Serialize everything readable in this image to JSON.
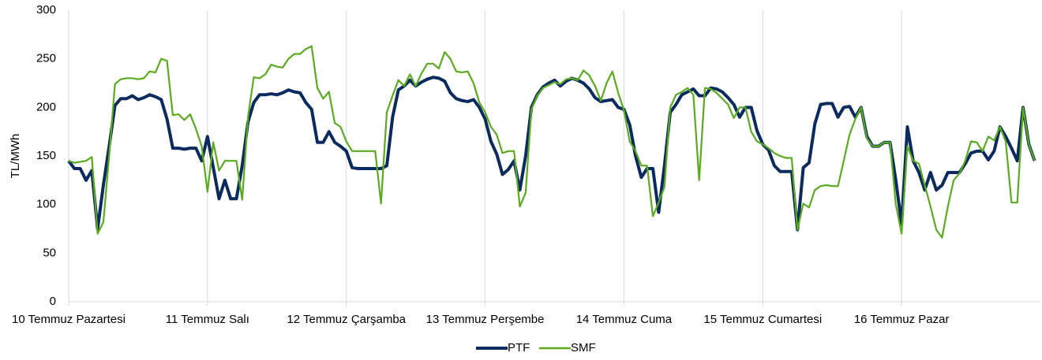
{
  "chart_data": {
    "type": "line",
    "y_label": "TL/MWh",
    "categories": [
      "10 Temmuz Pazartesi",
      null,
      null,
      null,
      null,
      null,
      null,
      null,
      null,
      null,
      null,
      null,
      null,
      null,
      null,
      null,
      null,
      null,
      null,
      null,
      null,
      null,
      null,
      null,
      "11 Temmuz Salı",
      null,
      null,
      null,
      null,
      null,
      null,
      null,
      null,
      null,
      null,
      null,
      null,
      null,
      null,
      null,
      null,
      null,
      null,
      null,
      null,
      null,
      null,
      null,
      "12 Temmuz Çarşamba",
      null,
      null,
      null,
      null,
      null,
      null,
      null,
      null,
      null,
      null,
      null,
      null,
      null,
      null,
      null,
      null,
      null,
      null,
      null,
      null,
      null,
      null,
      null,
      "13 Temmuz Perşembe",
      null,
      null,
      null,
      null,
      null,
      null,
      null,
      null,
      null,
      null,
      null,
      null,
      null,
      null,
      null,
      null,
      null,
      null,
      null,
      null,
      null,
      null,
      null,
      "14 Temmuz Cuma",
      null,
      null,
      null,
      null,
      null,
      null,
      null,
      null,
      null,
      null,
      null,
      null,
      null,
      null,
      null,
      null,
      null,
      null,
      null,
      null,
      null,
      null,
      null,
      "15 Temmuz Cumartesi",
      null,
      null,
      null,
      null,
      null,
      null,
      null,
      null,
      null,
      null,
      null,
      null,
      null,
      null,
      null,
      null,
      null,
      null,
      null,
      null,
      null,
      null,
      null,
      "16 Temmuz Pazar",
      null,
      null,
      null,
      null,
      null,
      null,
      null,
      null,
      null,
      null,
      null,
      null,
      null,
      null,
      null,
      null,
      null,
      null,
      null,
      null,
      null,
      null,
      null
    ],
    "series": [
      {
        "name": "PTF",
        "color": "#0b2a5e",
        "values": [
          145,
          137,
          137,
          125,
          135,
          75,
          120,
          160,
          202,
          209,
          209,
          212,
          208,
          210,
          213,
          211,
          208,
          188,
          158,
          158,
          157,
          158,
          158,
          145,
          170,
          138,
          106,
          125,
          106,
          106,
          140,
          185,
          205,
          213,
          213,
          214,
          213,
          215,
          218,
          216,
          215,
          205,
          198,
          164,
          164,
          175,
          164,
          160,
          155,
          138,
          137,
          137,
          137,
          137,
          137,
          140,
          190,
          218,
          222,
          228,
          222,
          226,
          229,
          231,
          230,
          227,
          215,
          209,
          207,
          206,
          208,
          200,
          188,
          165,
          152,
          131,
          136,
          145,
          115,
          150,
          200,
          213,
          221,
          225,
          228,
          222,
          227,
          230,
          228,
          225,
          219,
          210,
          206,
          207,
          208,
          200,
          198,
          182,
          150,
          128,
          137,
          137,
          92,
          140,
          195,
          203,
          213,
          216,
          219,
          212,
          212,
          220,
          219,
          216,
          210,
          203,
          190,
          200,
          200,
          176,
          162,
          156,
          140,
          134,
          134,
          134,
          74,
          138,
          143,
          183,
          203,
          204,
          204,
          190,
          200,
          201,
          190,
          200,
          170,
          160,
          160,
          164,
          164,
          125,
          80,
          180,
          145,
          133,
          115,
          133,
          115,
          120,
          133,
          133,
          133,
          142,
          153,
          155,
          155,
          146,
          155,
          180,
          170,
          158,
          145,
          200,
          162,
          145
        ]
      },
      {
        "name": "SMF",
        "color": "#5aab1e",
        "values": [
          145,
          143,
          144,
          145,
          149,
          70,
          82,
          150,
          224,
          229,
          230,
          230,
          229,
          230,
          237,
          236,
          250,
          248,
          192,
          193,
          187,
          193,
          178,
          160,
          113,
          164,
          135,
          145,
          145,
          145,
          105,
          190,
          231,
          230,
          234,
          244,
          242,
          241,
          250,
          255,
          255,
          260,
          263,
          220,
          209,
          216,
          184,
          180,
          165,
          155,
          155,
          155,
          155,
          155,
          101,
          195,
          212,
          228,
          222,
          234,
          222,
          235,
          245,
          245,
          240,
          257,
          250,
          237,
          236,
          237,
          225,
          205,
          195,
          180,
          172,
          153,
          155,
          155,
          98,
          112,
          198,
          212,
          220,
          223,
          226,
          224,
          229,
          230,
          228,
          238,
          233,
          222,
          207,
          225,
          237,
          215,
          197,
          165,
          155,
          140,
          140,
          88,
          102,
          118,
          200,
          213,
          216,
          220,
          213,
          125,
          220,
          219,
          215,
          209,
          203,
          189,
          200,
          200,
          175,
          165,
          162,
          158,
          153,
          150,
          148,
          148,
          74,
          101,
          97,
          115,
          119,
          120,
          119,
          119,
          145,
          172,
          188,
          200,
          168,
          160,
          160,
          164,
          164,
          100,
          70,
          160,
          145,
          142,
          120,
          98,
          74,
          66,
          98,
          125,
          132,
          145,
          165,
          164,
          155,
          170,
          166,
          180,
          165,
          102,
          102,
          200,
          162,
          145
        ]
      }
    ],
    "ylim": [
      0,
      300
    ],
    "yticks": [
      0,
      50,
      100,
      150,
      200,
      250,
      300
    ],
    "grid": "vertical",
    "legend": "bottom"
  }
}
